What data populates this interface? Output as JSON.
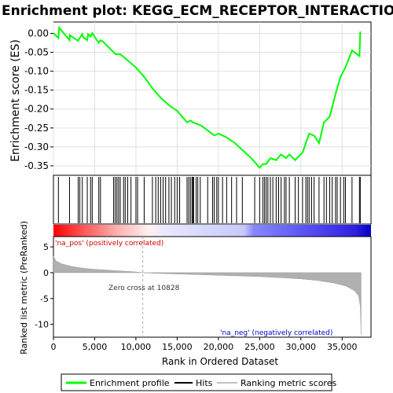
{
  "chart_data": {
    "type": "line",
    "title": "Enrichment plot: KEGG_ECM_RECEPTOR_INTERACTION",
    "x_axis": {
      "label": "Rank in Ordered Dataset",
      "range": [
        0,
        38500
      ],
      "ticks": [
        0,
        5000,
        10000,
        15000,
        20000,
        25000,
        30000,
        35000
      ],
      "tick_labels": [
        "0",
        "5,000",
        "10,000",
        "15,000",
        "20,000",
        "25,000",
        "30,000",
        "35,000"
      ]
    },
    "es_panel": {
      "ylabel": "Enrichment score (ES)",
      "ylim": [
        -0.375,
        0.03
      ],
      "ticks": [
        0.0,
        -0.05,
        -0.1,
        -0.15,
        -0.2,
        -0.25,
        -0.3,
        -0.35
      ],
      "tick_labels": [
        "0.00",
        "-0.05",
        "-0.10",
        "-0.15",
        "-0.20",
        "-0.25",
        "-0.30",
        "-0.35"
      ],
      "grid": true,
      "line_color": "#00ff00",
      "series": [
        {
          "name": "Enrichment profile",
          "x": [
            0,
            600,
            700,
            1950,
            2000,
            3000,
            3100,
            3500,
            3600,
            4100,
            4200,
            4500,
            4700,
            5500,
            5700,
            6000,
            7300,
            7500,
            8100,
            10000,
            11000,
            12000,
            13000,
            14000,
            15000,
            16200,
            16600,
            16900,
            17500,
            18000,
            19500,
            20000,
            21000,
            22000,
            23000,
            24000,
            25000,
            25400,
            25800,
            26300,
            27000,
            27600,
            28200,
            28600,
            29300,
            30200,
            30600,
            31000,
            31600,
            32200,
            32800,
            33500,
            34200,
            34800,
            35400,
            36200,
            37100,
            37200
          ],
          "y": [
            0.0,
            -0.012,
            0.015,
            -0.018,
            -0.005,
            -0.02,
            -0.015,
            -0.002,
            -0.01,
            -0.018,
            -0.002,
            -0.008,
            0.001,
            -0.025,
            -0.018,
            -0.022,
            -0.05,
            -0.055,
            -0.055,
            -0.09,
            -0.115,
            -0.145,
            -0.17,
            -0.19,
            -0.205,
            -0.235,
            -0.23,
            -0.235,
            -0.24,
            -0.245,
            -0.27,
            -0.265,
            -0.275,
            -0.29,
            -0.31,
            -0.33,
            -0.355,
            -0.345,
            -0.345,
            -0.33,
            -0.335,
            -0.32,
            -0.33,
            -0.32,
            -0.335,
            -0.315,
            -0.29,
            -0.265,
            -0.27,
            -0.29,
            -0.235,
            -0.22,
            -0.16,
            -0.115,
            -0.09,
            -0.045,
            -0.06,
            0.005
          ]
        }
      ]
    },
    "hits_panel": {
      "hit_color": "#000000",
      "hit_positions": [
        600,
        1950,
        3000,
        3200,
        3500,
        4100,
        4500,
        4700,
        5500,
        5700,
        7300,
        7500,
        7700,
        7900,
        8100,
        8500,
        8700,
        9000,
        9400,
        10000,
        10200,
        11000,
        12000,
        12400,
        12700,
        13000,
        13300,
        13600,
        14000,
        14300,
        14700,
        15000,
        15300,
        16200,
        16400,
        16600,
        16800,
        16900,
        17000,
        17300,
        17500,
        17800,
        18700,
        19300,
        19500,
        19800,
        20000,
        20500,
        21000,
        21600,
        22200,
        22900,
        24400,
        25000,
        25400,
        25600,
        25800,
        26000,
        26300,
        26600,
        27000,
        27300,
        27600,
        28000,
        28200,
        28600,
        29300,
        29700,
        30200,
        30600,
        30800,
        31000,
        31300,
        31600,
        32200,
        32800,
        33100,
        33500,
        33800,
        34200,
        34400,
        34800,
        35200,
        35400,
        36200,
        37100,
        37200
      ],
      "gradient_stops": [
        {
          "pos": 0.0,
          "color": "#ff0000"
        },
        {
          "pos": 0.08,
          "color": "#ff4a4a"
        },
        {
          "pos": 0.2,
          "color": "#ffb0b0"
        },
        {
          "pos": 0.3,
          "color": "#fff0f0"
        },
        {
          "pos": 0.35,
          "color": "#e8e8ff"
        },
        {
          "pos": 0.6,
          "color": "#c8c8ff"
        },
        {
          "pos": 0.63,
          "color": "#8888ff"
        },
        {
          "pos": 0.85,
          "color": "#4a40ee"
        },
        {
          "pos": 0.95,
          "color": "#3020dd"
        },
        {
          "pos": 1.0,
          "color": "#0000cc"
        }
      ]
    },
    "metric_panel": {
      "ylabel": "Ranked list metric (PreRanked)",
      "ylim": [
        -12.5,
        7
      ],
      "ticks": [
        5,
        0,
        -5,
        -10
      ],
      "tick_labels": [
        "5",
        "0",
        "-5",
        "-10"
      ],
      "fill_color": "#b0b0b0",
      "series": [
        {
          "name": "Ranking metric scores",
          "x": [
            0,
            300,
            1000,
            2000,
            3000,
            4000,
            5000,
            6000,
            7000,
            8000,
            9000,
            10000,
            10828,
            12000,
            15000,
            20000,
            25000,
            28000,
            30000,
            32000,
            34000,
            35500,
            36500,
            37000,
            37200,
            37250,
            37300
          ],
          "y": [
            3.2,
            2.3,
            1.7,
            1.3,
            1.0,
            0.8,
            0.65,
            0.55,
            0.45,
            0.35,
            0.25,
            0.15,
            0.0,
            -0.1,
            -0.25,
            -0.5,
            -0.75,
            -1.0,
            -1.2,
            -1.5,
            -2.0,
            -2.6,
            -3.5,
            -4.5,
            -6.5,
            -9.5,
            -12.0
          ]
        }
      ],
      "zero_cross_rank": 10828,
      "annotation_zero_cross": "Zero cross at 10828",
      "label_pos": "'na_pos' (positively correlated)",
      "label_neg": "'na_neg' (negatively correlated)",
      "label_pos_color": "#cc0000",
      "label_neg_color": "#0000cc"
    },
    "legend": {
      "placement": "bottom",
      "items": [
        {
          "label": "Enrichment profile",
          "color": "#00ff00"
        },
        {
          "label": "Hits",
          "color": "#000000"
        },
        {
          "label": "Ranking metric scores",
          "color": "#c0c0c0"
        }
      ]
    }
  }
}
